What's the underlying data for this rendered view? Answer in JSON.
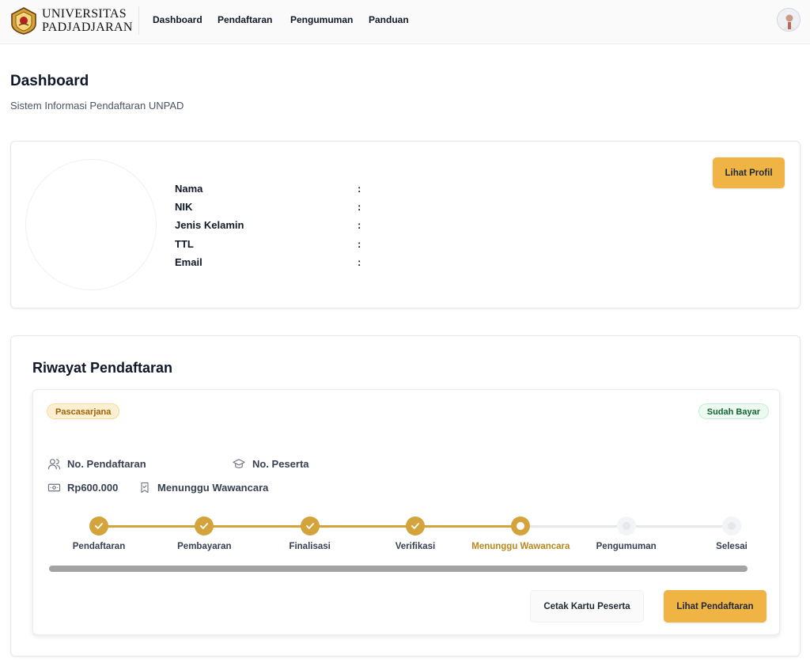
{
  "header": {
    "brand_line1": "UNIVERSITAS",
    "brand_line2": "PADJADJARAN",
    "nav": [
      {
        "label": "Dashboard"
      },
      {
        "label": "Pendaftaran"
      },
      {
        "label": "Pengumuman"
      },
      {
        "label": "Panduan"
      }
    ],
    "logo_icon": "unpad-crest-icon",
    "avatar_icon": "user-avatar-icon"
  },
  "page": {
    "title": "Dashboard",
    "subtitle": "Sistem Informasi Pendaftaran UNPAD"
  },
  "profile": {
    "fields": [
      {
        "label": "Nama",
        "value": ""
      },
      {
        "label": "NIK",
        "value": ""
      },
      {
        "label": "Jenis Kelamin",
        "value": ""
      },
      {
        "label": "TTL",
        "value": ""
      },
      {
        "label": "Email",
        "value": ""
      }
    ],
    "separator": ":",
    "view_profile_label": "Lihat Profil"
  },
  "history": {
    "title": "Riwayat Pendaftaran",
    "registration": {
      "program_badge": "Pascasarjana",
      "payment_badge": "Sudah Bayar",
      "registration_no_label": "No. Pendaftaran",
      "participant_no_label": "No. Peserta",
      "fee": "Rp600.000",
      "status": "Menunggu Wawancara",
      "steps": [
        {
          "label": "Pendaftaran",
          "state": "done"
        },
        {
          "label": "Pembayaran",
          "state": "done"
        },
        {
          "label": "Finalisasi",
          "state": "done"
        },
        {
          "label": "Verifikasi",
          "state": "done"
        },
        {
          "label": "Menunggu Wawancara",
          "state": "current"
        },
        {
          "label": "Pengumuman",
          "state": "todo"
        },
        {
          "label": "Selesai",
          "state": "todo"
        }
      ],
      "print_card_label": "Cetak Kartu Peserta",
      "view_registration_label": "Lihat Pendaftaran"
    }
  },
  "colors": {
    "accent": "#f0b444",
    "step_done": "#d4a33c",
    "step_current_label": "#b8871f",
    "track_todo": "#e5e7eb"
  }
}
